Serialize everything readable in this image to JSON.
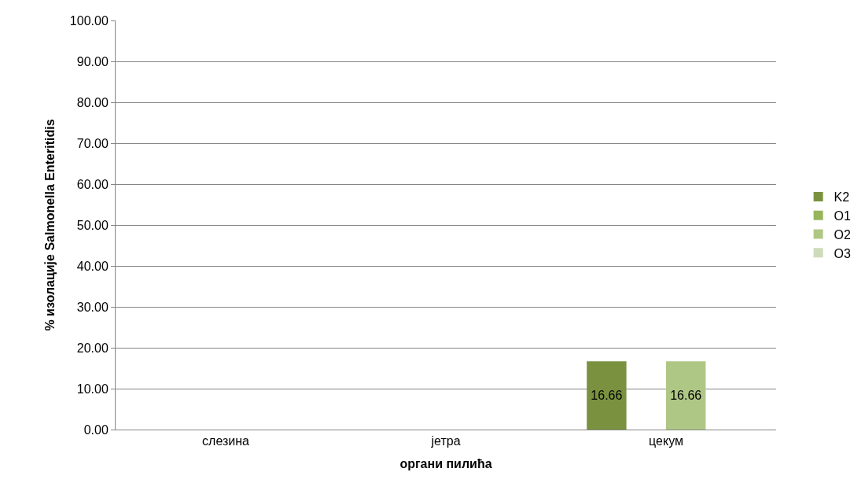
{
  "chart_data": {
    "type": "bar",
    "xlabel": "органи пилића",
    "ylabel": "% изолације Salmonella Enteritidis",
    "categories": [
      "слезина",
      "јетра",
      "цекум"
    ],
    "series": [
      {
        "name": "K2",
        "color": "#7a9240",
        "values": [
          0,
          0,
          16.66
        ],
        "value_labels": [
          null,
          null,
          "16.66"
        ]
      },
      {
        "name": "O1",
        "color": "#97b55a",
        "values": [
          0,
          0,
          0
        ],
        "value_labels": [
          null,
          null,
          null
        ]
      },
      {
        "name": "O2",
        "color": "#afc785",
        "values": [
          0,
          0,
          16.66
        ],
        "value_labels": [
          null,
          null,
          "16.66"
        ]
      },
      {
        "name": "O3",
        "color": "#cddbb9",
        "values": [
          0,
          0,
          0
        ],
        "value_labels": [
          null,
          null,
          null
        ]
      }
    ],
    "ylim": [
      0,
      100
    ],
    "yticks": [
      {
        "value": 0,
        "label": "0.00"
      },
      {
        "value": 10,
        "label": "10.00"
      },
      {
        "value": 20,
        "label": "20.00"
      },
      {
        "value": 30,
        "label": "30.00"
      },
      {
        "value": 40,
        "label": "40.00"
      },
      {
        "value": 50,
        "label": "50.00"
      },
      {
        "value": 60,
        "label": "60.00"
      },
      {
        "value": 70,
        "label": "70.00"
      },
      {
        "value": 80,
        "label": "80.00"
      },
      {
        "value": 90,
        "label": "90.00"
      },
      {
        "value": 100,
        "label": "100.00"
      }
    ],
    "grid": "y",
    "legend": "right"
  }
}
